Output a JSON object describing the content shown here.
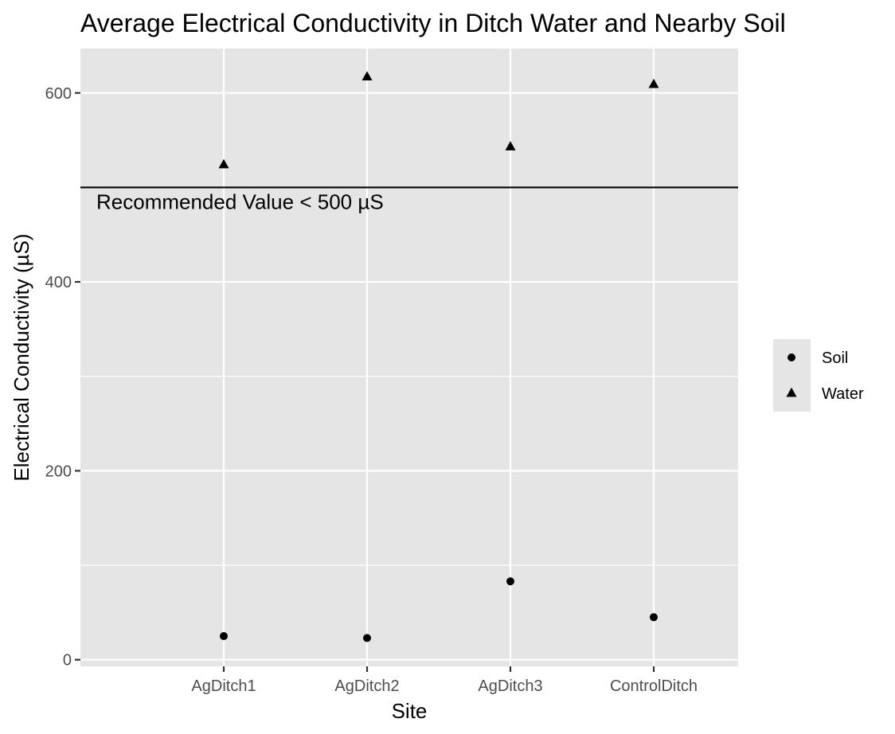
{
  "chart_data": {
    "type": "scatter",
    "title": "Average Electrical Conductivity in Ditch Water and Nearby Soil",
    "xlabel": "Site",
    "ylabel": "Electrical Conductivity (µS)",
    "categories": [
      "AgDitch1",
      "AgDitch2",
      "AgDitch3",
      "ControlDitch"
    ],
    "ylim": [
      -7,
      647
    ],
    "yticks": [
      0,
      200,
      400,
      600
    ],
    "grid": true,
    "legend_position": "right",
    "series": [
      {
        "name": "Soil",
        "marker": "circle",
        "values": [
          25,
          23,
          83,
          45
        ]
      },
      {
        "name": "Water",
        "marker": "triangle",
        "values": [
          524,
          617,
          543,
          609
        ]
      }
    ],
    "hline": {
      "value": 500,
      "label": "Recommended Value < 500 µS"
    },
    "colors": {
      "panel": "#e5e5e5",
      "grid": "#ffffff",
      "points": "#000000",
      "tick_text": "#4d4d4d"
    }
  }
}
